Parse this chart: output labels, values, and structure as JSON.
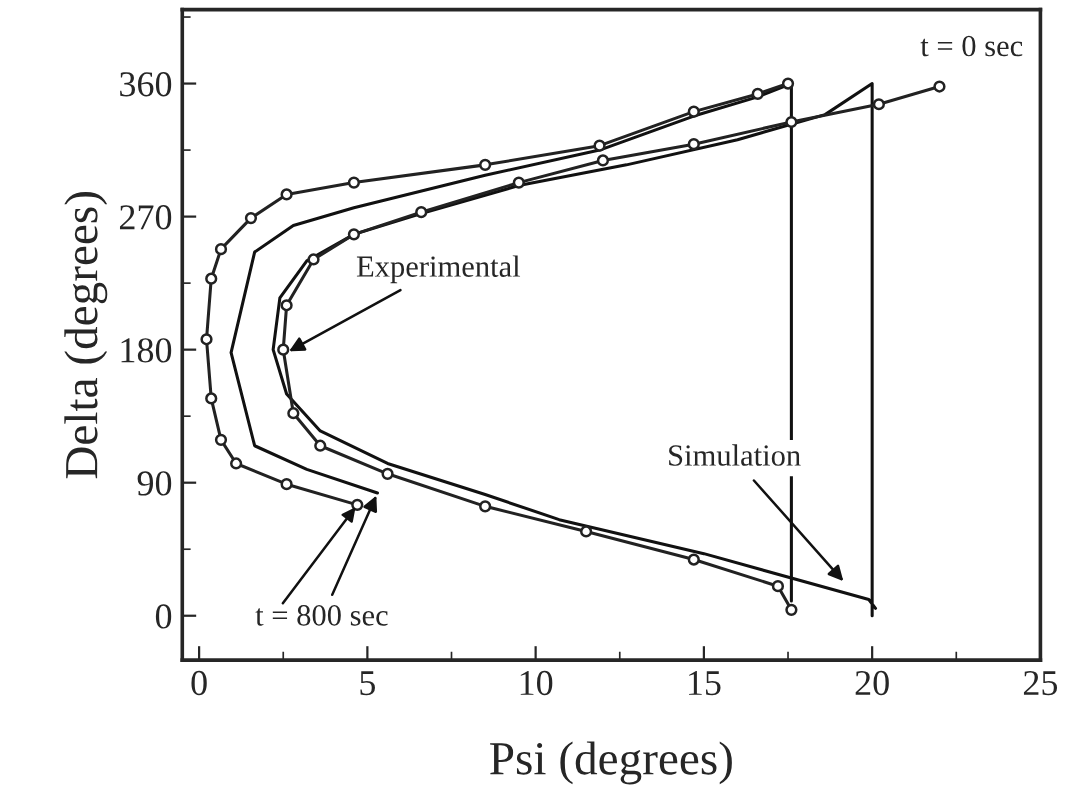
{
  "chart_data": {
    "type": "line",
    "xlabel": "Psi (degrees)",
    "ylabel": "Delta (degrees)",
    "xlim": [
      -0.5,
      25
    ],
    "xticks": [
      0,
      5,
      10,
      15,
      20,
      25
    ],
    "ylim": [
      -30,
      410
    ],
    "yticks": [
      0,
      90,
      180,
      270,
      360
    ],
    "grid": false,
    "legend": false,
    "line_style": "solid",
    "series": [
      {
        "color": "#222222",
        "marker": "circle",
        "x": [
          4.7,
          2.6,
          1.1,
          0.65,
          0.36,
          0.22,
          0.36,
          0.65,
          1.54,
          2.6,
          4.6,
          8.5,
          11.9,
          14.7,
          16.6,
          17.5
        ],
        "values": [
          75,
          89,
          103,
          119,
          147,
          187,
          228,
          248,
          269,
          285,
          293,
          305,
          318,
          341,
          353,
          360
        ]
      },
      {
        "color": "#222222",
        "marker": "circle",
        "x": [
          17.6,
          17.2,
          14.7,
          11.5,
          8.5,
          5.6,
          3.6,
          2.8,
          2.5,
          2.6,
          3.4,
          4.6,
          6.6,
          9.5,
          12.0,
          14.7,
          17.6,
          20.2,
          22.0
        ],
        "values": [
          4,
          20,
          38,
          57,
          74,
          96,
          115,
          137,
          180,
          210,
          241,
          258,
          273,
          293,
          308,
          319,
          334,
          346,
          358
        ]
      },
      {
        "color": "#111111",
        "marker": "none",
        "x": [
          5.3,
          3.2,
          1.65,
          0.95,
          1.65,
          2.8,
          4.6,
          8.5,
          11.9,
          14.7,
          16.6,
          17.6,
          17.6
        ],
        "values": [
          83,
          99,
          115,
          178,
          246,
          264,
          276,
          298,
          315,
          338,
          351,
          360,
          10
        ]
      },
      {
        "color": "#111111",
        "marker": "none",
        "x": [
          20.1,
          19.9,
          15.0,
          10.7,
          8.5,
          5.6,
          3.6,
          2.6,
          2.2,
          2.4,
          3.2,
          4.6,
          6.6,
          9.5,
          12.7,
          16.0,
          18.6,
          20.0,
          20.0
        ],
        "values": [
          5,
          11,
          42,
          65,
          82,
          103,
          125,
          150,
          180,
          215,
          240,
          258,
          272,
          291,
          305,
          322,
          339,
          360,
          0
        ]
      }
    ],
    "annotations": [
      {
        "text": "Experimental",
        "x": 2.6,
        "y": 178
      },
      {
        "text": "Simulation",
        "x": 19.2,
        "y": 22
      },
      {
        "text": "t = 800 sec",
        "x": 5.3,
        "y": 83
      },
      "t = 0 sec"
    ]
  }
}
